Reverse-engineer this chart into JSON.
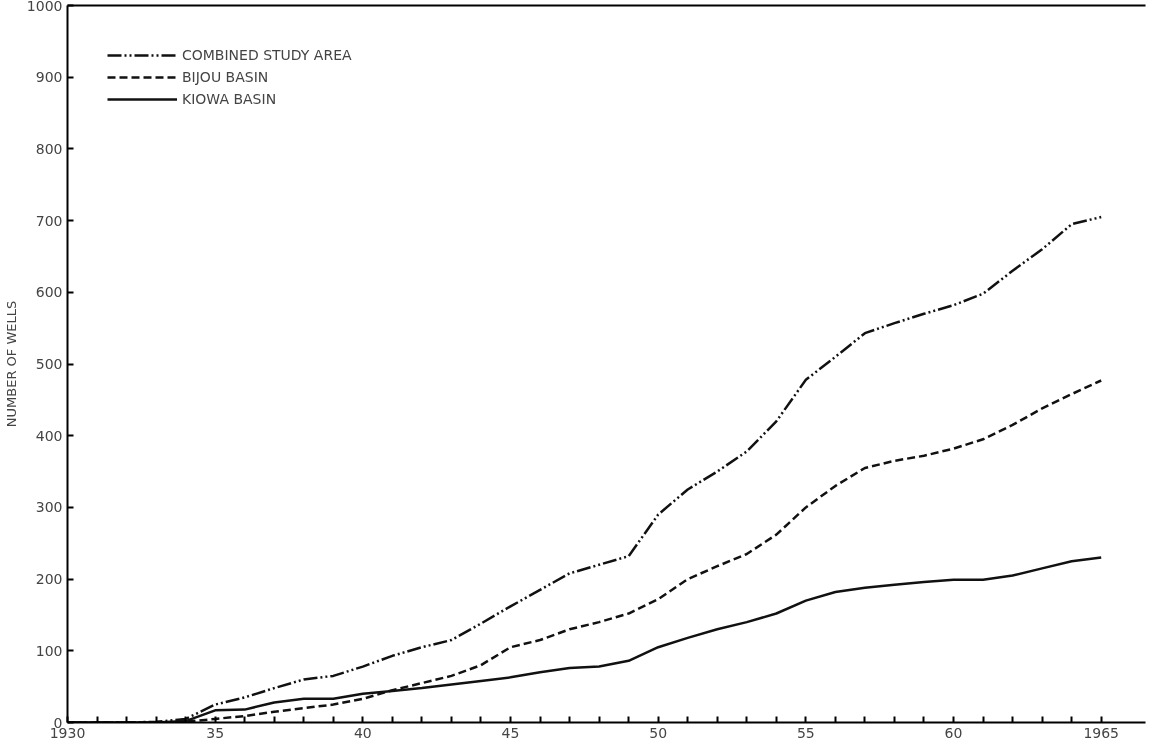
{
  "chart_data": {
    "type": "line",
    "ylabel": "NUMBER OF WELLS",
    "x": [
      1930,
      1931,
      1932,
      1933,
      1934,
      1935,
      1936,
      1937,
      1938,
      1939,
      1940,
      1941,
      1942,
      1943,
      1944,
      1945,
      1946,
      1947,
      1948,
      1949,
      1950,
      1951,
      1952,
      1953,
      1954,
      1955,
      1956,
      1957,
      1958,
      1959,
      1960,
      1961,
      1962,
      1963,
      1964,
      1965
    ],
    "series": [
      {
        "name": "COMBINED STUDY AREA",
        "color": "#111111",
        "line_style": "dashdotdot",
        "values": [
          0,
          0,
          0,
          1,
          5,
          25,
          35,
          48,
          60,
          65,
          78,
          93,
          105,
          115,
          138,
          162,
          185,
          208,
          220,
          232,
          290,
          325,
          350,
          378,
          420,
          478,
          510,
          543,
          557,
          570,
          582,
          598,
          630,
          660,
          695,
          705
        ]
      },
      {
        "name": "BIJOU BASIN",
        "color": "#111111",
        "line_style": "dashed",
        "values": [
          0,
          0,
          0,
          0,
          1,
          5,
          9,
          15,
          20,
          25,
          33,
          45,
          55,
          65,
          80,
          105,
          115,
          130,
          140,
          152,
          172,
          200,
          218,
          235,
          262,
          300,
          330,
          355,
          365,
          372,
          382,
          395,
          415,
          438,
          458,
          477
        ]
      },
      {
        "name": "KIOWA BASIN",
        "color": "#111111",
        "line_style": "solid",
        "values": [
          0,
          0,
          0,
          0,
          2,
          17,
          18,
          28,
          33,
          33,
          40,
          44,
          48,
          53,
          58,
          63,
          70,
          76,
          78,
          86,
          105,
          118,
          130,
          140,
          152,
          170,
          182,
          188,
          192,
          196,
          199,
          199,
          205,
          215,
          225,
          230
        ]
      }
    ],
    "xlim": [
      1930,
      1966.5
    ],
    "ylim": [
      0,
      1000
    ],
    "xticks": [
      1930,
      {
        "value": 1931,
        "label": null
      },
      {
        "value": 1932,
        "label": null
      },
      {
        "value": 1933,
        "label": null
      },
      {
        "value": 1934,
        "label": null
      },
      {
        "value": 1935,
        "label": "35"
      },
      {
        "value": 1936,
        "label": null
      },
      {
        "value": 1937,
        "label": null
      },
      {
        "value": 1938,
        "label": null
      },
      {
        "value": 1939,
        "label": null
      },
      {
        "value": 1940,
        "label": "40"
      },
      {
        "value": 1941,
        "label": null
      },
      {
        "value": 1942,
        "label": null
      },
      {
        "value": 1943,
        "label": null
      },
      {
        "value": 1944,
        "label": null
      },
      {
        "value": 1945,
        "label": "45"
      },
      {
        "value": 1946,
        "label": null
      },
      {
        "value": 1947,
        "label": null
      },
      {
        "value": 1948,
        "label": null
      },
      {
        "value": 1949,
        "label": null
      },
      {
        "value": 1950,
        "label": "50"
      },
      {
        "value": 1951,
        "label": null
      },
      {
        "value": 1952,
        "label": null
      },
      {
        "value": 1953,
        "label": null
      },
      {
        "value": 1954,
        "label": null
      },
      {
        "value": 1955,
        "label": "55"
      },
      {
        "value": 1956,
        "label": null
      },
      {
        "value": 1957,
        "label": null
      },
      {
        "value": 1958,
        "label": null
      },
      {
        "value": 1959,
        "label": null
      },
      {
        "value": 1960,
        "label": "60"
      },
      {
        "value": 1961,
        "label": null
      },
      {
        "value": 1962,
        "label": null
      },
      {
        "value": 1963,
        "label": null
      },
      {
        "value": 1964,
        "label": null
      },
      1965
    ],
    "yticks": [
      0,
      100,
      200,
      300,
      400,
      500,
      600,
      700,
      800,
      900,
      1000
    ],
    "grid": false,
    "legend": "top left",
    "marker": "none"
  }
}
